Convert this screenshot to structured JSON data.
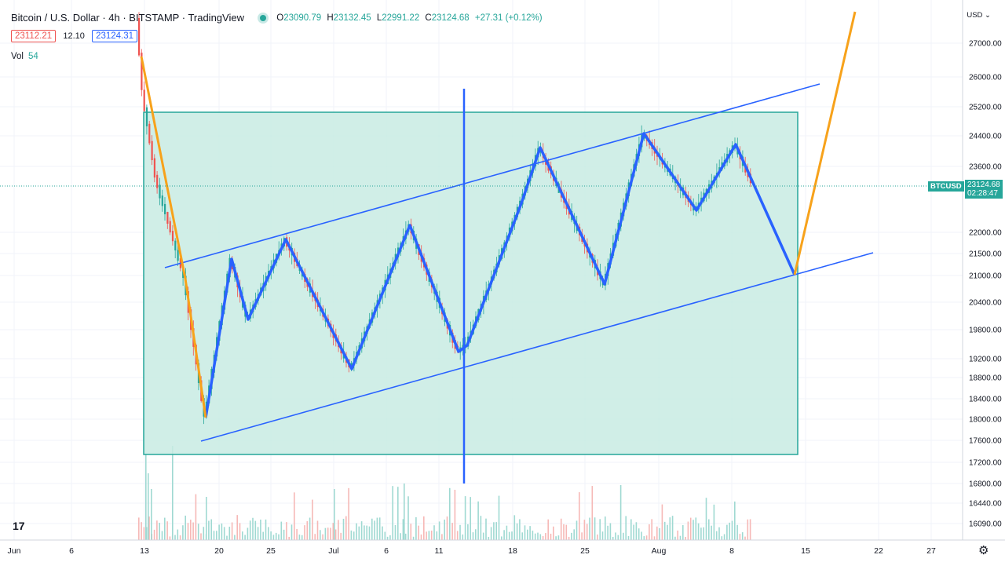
{
  "legend": {
    "symbol": "Bitcoin / U.S. Dollar",
    "interval": "4h",
    "exchange": "BITSTAMP",
    "source": "TradingView",
    "open_label": "O",
    "open": "23090.79",
    "high_label": "H",
    "high": "23132.45",
    "low_label": "L",
    "low": "22991.22",
    "close_label": "C",
    "close": "23124.68",
    "change": "+27.31 (+0.12%)",
    "sell_price": "23112.21",
    "spread": "12.10",
    "buy_price": "23124.31",
    "vol_label": "Vol",
    "vol_value": "54"
  },
  "price_axis": {
    "currency": "USD",
    "labels": [
      "27000.00",
      "26000.00",
      "25200.00",
      "24400.00",
      "23600.00",
      "22000.00",
      "21500.00",
      "21000.00",
      "20400.00",
      "19800.00",
      "19200.00",
      "18800.00",
      "18400.00",
      "18000.00",
      "17600.00",
      "17200.00",
      "16800.00",
      "16440.00",
      "16090.00"
    ],
    "ticker_tag": "BTCUSD",
    "last_price": "23124.68",
    "countdown": "02:28:47"
  },
  "time_axis": {
    "labels": [
      "Jun",
      "6",
      "13",
      "20",
      "25",
      "Jul",
      "6",
      "11",
      "18",
      "25",
      "Aug",
      "8",
      "15",
      "22",
      "27"
    ]
  },
  "colors": {
    "up": "#26a69a",
    "down": "#ef5350",
    "box_fill": "#c8ebe3",
    "box_border": "#26a69a",
    "trend": "#2962ff",
    "orange": "#f7a21b"
  },
  "icons": {
    "logo": "tradingview-logo-icon",
    "settings": "gear-icon"
  }
}
